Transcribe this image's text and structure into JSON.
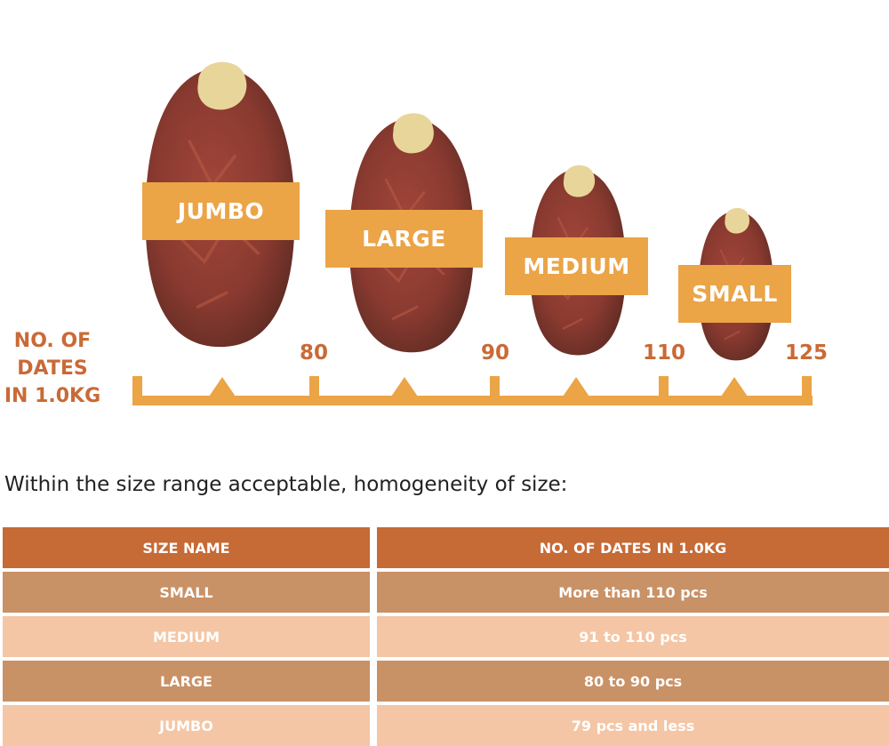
{
  "sizes": {
    "jumbo": "JUMBO",
    "large": "LARGE",
    "medium": "MEDIUM",
    "small": "SMALL"
  },
  "axis": {
    "title_lines": [
      "NO. OF",
      "DATES",
      "IN 1.0KG"
    ],
    "ticks": [
      "80",
      "90",
      "110",
      "125"
    ]
  },
  "intro": "Within the size range acceptable, homogeneity of size:",
  "table": {
    "headers": [
      "SIZE NAME",
      "NO. OF DATES IN 1.0KG"
    ],
    "rows": [
      [
        "SMALL",
        "More than 110 pcs"
      ],
      [
        "MEDIUM",
        "91 to 110 pcs"
      ],
      [
        "LARGE",
        "80 to 90 pcs"
      ],
      [
        "JUMBO",
        "79 pcs and less"
      ]
    ]
  },
  "colors": {
    "accent": "#eba446",
    "heading": "#c96a36",
    "header_bg": "#c66a36",
    "row_dark": "#c99166",
    "row_light": "#f4c6a5"
  }
}
